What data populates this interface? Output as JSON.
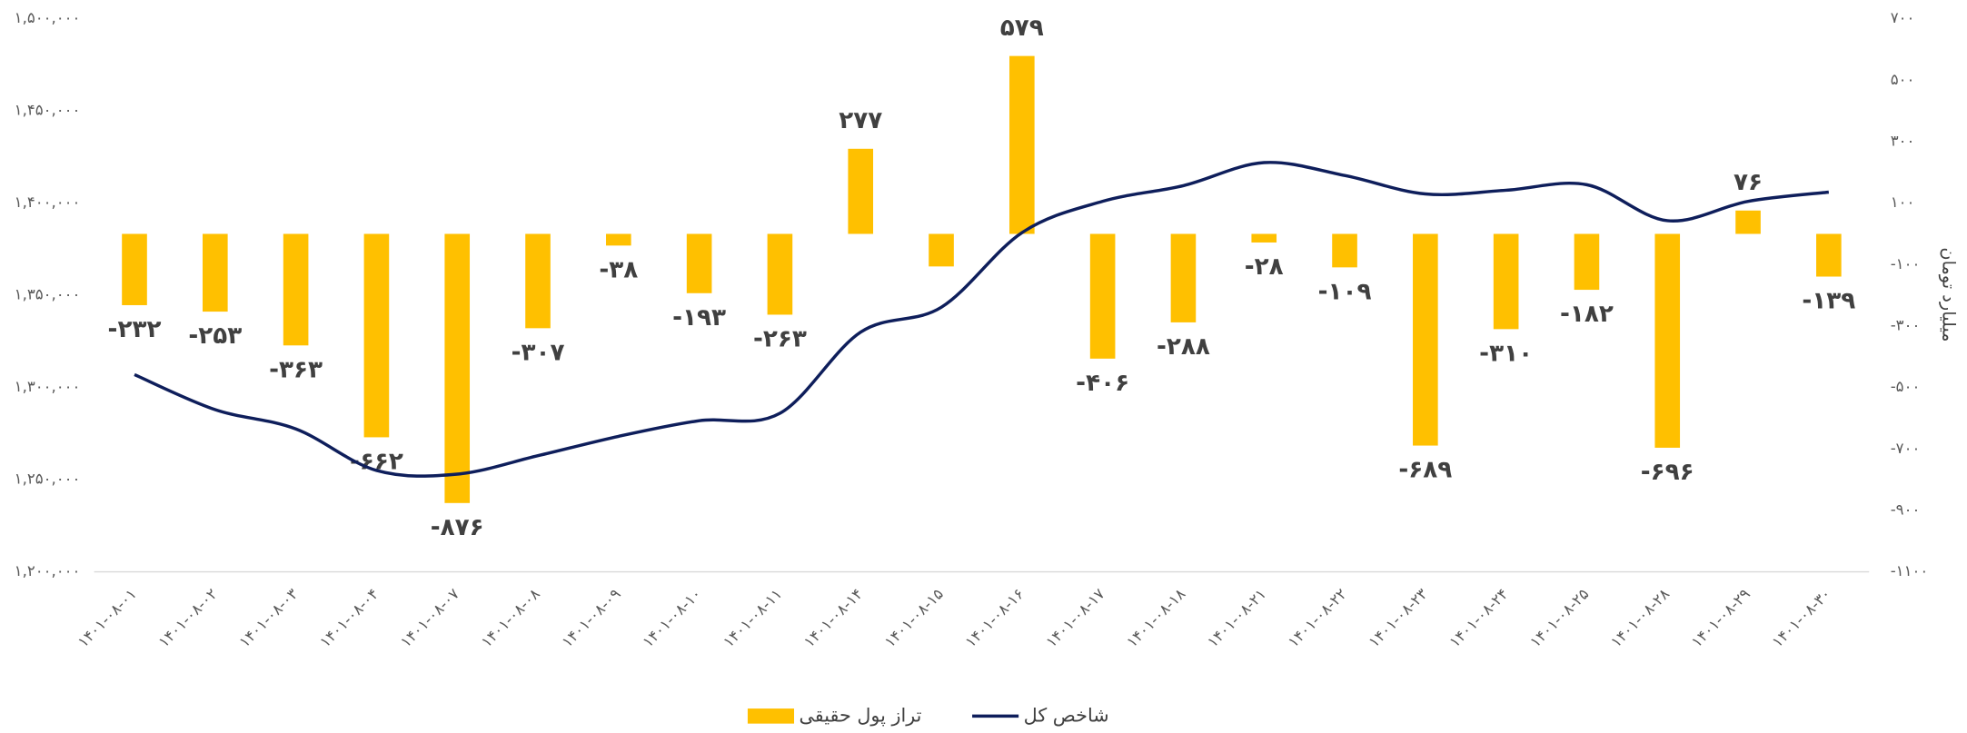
{
  "chart_data": {
    "type": "bar+line",
    "categories": [
      "۱۴۰۱-۰۸-۰۱",
      "۱۴۰۱-۰۸-۰۲",
      "۱۴۰۱-۰۸-۰۳",
      "۱۴۰۱-۰۸-۰۴",
      "۱۴۰۱-۰۸-۰۷",
      "۱۴۰۱-۰۸-۰۸",
      "۱۴۰۱-۰۸-۰۹",
      "۱۴۰۱-۰۸-۱۰",
      "۱۴۰۱-۰۸-۱۱",
      "۱۴۰۱-۰۸-۱۴",
      "۱۴۰۱-۰۸-۱۵",
      "۱۴۰۱-۰۸-۱۶",
      "۱۴۰۱-۰۸-۱۷",
      "۱۴۰۱-۰۸-۱۸",
      "۱۴۰۱-۰۸-۲۱",
      "۱۴۰۱-۰۸-۲۲",
      "۱۴۰۱-۰۸-۲۳",
      "۱۴۰۱-۰۸-۲۴",
      "۱۴۰۱-۰۸-۲۵",
      "۱۴۰۱-۰۸-۲۸",
      "۱۴۰۱-۰۸-۲۹",
      "۱۴۰۱-۰۸-۳۰"
    ],
    "series": [
      {
        "name": "تراز پول حقیقی",
        "type": "bar",
        "axis": "y2",
        "color": "#FFC000",
        "values": [
          -232,
          -253,
          -363,
          -662,
          -876,
          -307,
          -38,
          -193,
          -263,
          277,
          -106,
          579,
          -406,
          -288,
          -28,
          -109,
          -689,
          -310,
          -182,
          -696,
          76,
          -139
        ],
        "value_labels": [
          "-۲۳۲",
          "-۲۵۳",
          "-۳۶۳",
          "-۶۶۲",
          "-۸۷۶",
          "-۳۰۷",
          "-۳۸",
          "-۱۹۳",
          "-۲۶۳",
          "۲۷۷",
          null,
          "۵۷۹",
          "-۴۰۶",
          "-۲۸۸",
          "-۲۸",
          "-۱۰۹",
          "-۶۸۹",
          "-۳۱۰",
          "-۱۸۲",
          "-۶۹۶",
          "۷۶",
          "-۱۳۹"
        ]
      },
      {
        "name": "شاخص کل",
        "type": "line",
        "axis": "y",
        "color": "#0E1E5B",
        "values": [
          1307000,
          1288000,
          1277500,
          1255000,
          1253000,
          1263000,
          1273500,
          1282000,
          1286000,
          1330000,
          1343500,
          1384000,
          1401000,
          1409500,
          1422000,
          1415000,
          1405000,
          1407000,
          1410000,
          1390500,
          1401000,
          1406000
        ]
      }
    ],
    "ylim": [
      1200000,
      1500000
    ],
    "yticks": [
      {
        "value": 1200000,
        "label": "۱,۲۰۰,۰۰۰"
      },
      {
        "value": 1250000,
        "label": "۱,۲۵۰,۰۰۰"
      },
      {
        "value": 1300000,
        "label": "۱,۳۰۰,۰۰۰"
      },
      {
        "value": 1350000,
        "label": "۱,۳۵۰,۰۰۰"
      },
      {
        "value": 1400000,
        "label": "۱,۴۰۰,۰۰۰"
      },
      {
        "value": 1450000,
        "label": "۱,۴۵۰,۰۰۰"
      },
      {
        "value": 1500000,
        "label": "۱,۵۰۰,۰۰۰"
      }
    ],
    "y2lim": [
      -1100,
      700
    ],
    "y2ticks": [
      {
        "value": -1100,
        "label": "-۱۱۰۰"
      },
      {
        "value": -900,
        "label": "-۹۰۰"
      },
      {
        "value": -700,
        "label": "-۷۰۰"
      },
      {
        "value": -500,
        "label": "-۵۰۰"
      },
      {
        "value": -300,
        "label": "-۳۰۰"
      },
      {
        "value": -100,
        "label": "-۱۰۰"
      },
      {
        "value": 100,
        "label": "۱۰۰"
      },
      {
        "value": 300,
        "label": "۳۰۰"
      },
      {
        "value": 500,
        "label": "۵۰۰"
      },
      {
        "value": 700,
        "label": "۷۰۰"
      }
    ],
    "y2label": "میلیارد تومان",
    "grid": false,
    "legend": "bottom"
  }
}
